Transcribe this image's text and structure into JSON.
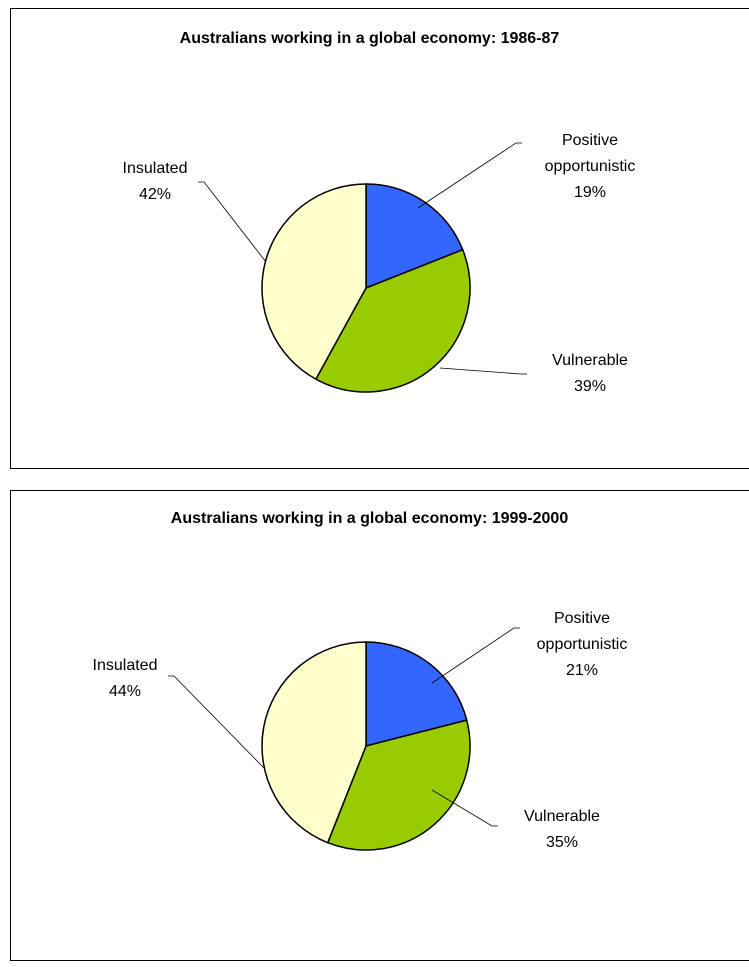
{
  "chart_data": [
    {
      "type": "pie",
      "title": "Australians working in a global economy: 1986-87",
      "categories": [
        "Positive opportunistic",
        "Vulnerable",
        "Insulated"
      ],
      "values": [
        19,
        39,
        42
      ],
      "value_labels": [
        "19%",
        "39%",
        "42%"
      ],
      "colors": [
        "#3366ff",
        "#99cc00",
        "#ffffcc"
      ]
    },
    {
      "type": "pie",
      "title": "Australians working in a global economy: 1999-2000",
      "categories": [
        "Positive opportunistic",
        "Vulnerable",
        "Insulated"
      ],
      "values": [
        21,
        35,
        44
      ],
      "value_labels": [
        "21%",
        "35%",
        "44%"
      ],
      "colors": [
        "#3366ff",
        "#99cc00",
        "#ffffcc"
      ]
    }
  ]
}
